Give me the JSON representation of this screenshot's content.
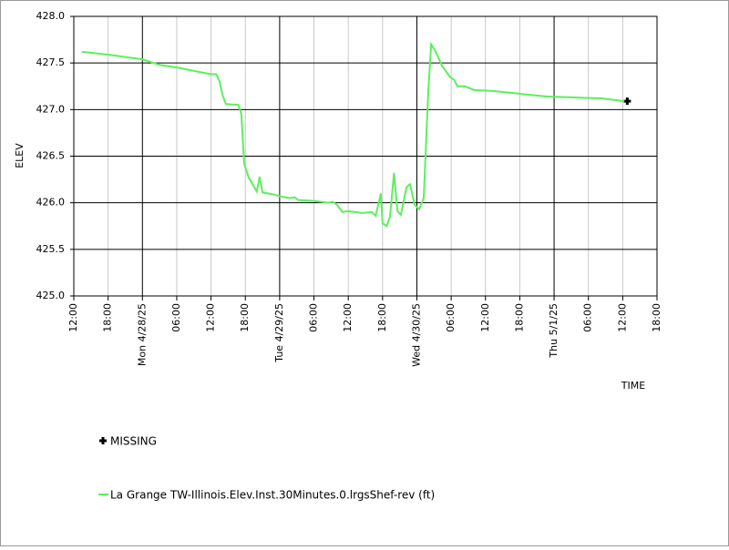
{
  "chart_data": {
    "type": "line",
    "x_label": "TIME",
    "y_label": "ELEV",
    "xlim": [
      0,
      102
    ],
    "ylim": [
      425,
      428
    ],
    "xticks": [
      {
        "value": 0,
        "label": "12:00"
      },
      {
        "value": 6,
        "label": "18:00"
      },
      {
        "value": 12,
        "label": "Mon 4/28/25"
      },
      {
        "value": 18,
        "label": "06:00"
      },
      {
        "value": 24,
        "label": "12:00"
      },
      {
        "value": 30,
        "label": "18:00"
      },
      {
        "value": 36,
        "label": "Tue 4/29/25"
      },
      {
        "value": 42,
        "label": "06:00"
      },
      {
        "value": 48,
        "label": "12:00"
      },
      {
        "value": 54,
        "label": "18:00"
      },
      {
        "value": 60,
        "label": "Wed 4/30/25"
      },
      {
        "value": 66,
        "label": "06:00"
      },
      {
        "value": 72,
        "label": "12:00"
      },
      {
        "value": 78,
        "label": "18:00"
      },
      {
        "value": 84,
        "label": "Thu 5/1/25"
      },
      {
        "value": 90,
        "label": "06:00"
      },
      {
        "value": 96,
        "label": "12:00"
      },
      {
        "value": 102,
        "label": "18:00"
      }
    ],
    "major_xticks": [
      12,
      36,
      60,
      84
    ],
    "yticks": [
      {
        "value": 425,
        "label": "425.0"
      },
      {
        "value": 425.5,
        "label": "425.5"
      },
      {
        "value": 426,
        "label": "426.0"
      },
      {
        "value": 426.5,
        "label": "426.5"
      },
      {
        "value": 427,
        "label": "427.0"
      },
      {
        "value": 427.5,
        "label": "427.5"
      },
      {
        "value": 428,
        "label": "428.0"
      }
    ],
    "grid": true,
    "series": [
      {
        "name": "MISSING",
        "color": "#000000",
        "marker": "plus",
        "x": [
          96.8
        ],
        "values": [
          427.09
        ]
      },
      {
        "name": "La Grange TW-Illinois.Elev.Inst.30Minutes.0.lrgsShef-rev (ft)",
        "color": "#5cf05c",
        "marker": "line",
        "x": [
          1.4,
          6,
          9.4,
          12,
          15,
          18.2,
          21.4,
          24,
          24.9,
          25.5,
          26,
          26.6,
          28.8,
          29.3,
          29.8,
          30.6,
          32,
          32.5,
          33,
          34.9,
          36,
          37.8,
          38.6,
          39.2,
          42,
          44.5,
          45.3,
          46,
          47,
          48,
          50.5,
          52.1,
          52.8,
          53.7,
          54,
          54.7,
          55.3,
          56,
          56.6,
          57.2,
          58.2,
          58.8,
          59.6,
          60.4,
          61.2,
          62,
          62.5,
          63.3,
          64.4,
          65.8,
          66.5,
          67.1,
          68.4,
          70,
          73.2,
          76.4,
          79.5,
          82.7,
          87.5,
          92.3,
          96.3
        ],
        "values": [
          427.62,
          427.59,
          427.56,
          427.54,
          427.48,
          427.45,
          427.41,
          427.38,
          427.38,
          427.3,
          427.16,
          427.06,
          427.05,
          426.95,
          426.42,
          426.27,
          426.12,
          426.28,
          426.11,
          426.09,
          426.07,
          426.05,
          426.06,
          426.03,
          426.02,
          426.0,
          426.01,
          425.98,
          425.9,
          425.91,
          425.89,
          425.9,
          425.86,
          426.1,
          425.78,
          425.75,
          425.85,
          426.32,
          425.91,
          425.87,
          426.17,
          426.2,
          425.98,
          425.93,
          426.05,
          427.2,
          427.7,
          427.62,
          427.47,
          427.35,
          427.32,
          427.25,
          427.25,
          427.21,
          427.2,
          427.18,
          427.16,
          427.14,
          427.13,
          427.12,
          427.09
        ]
      }
    ]
  }
}
